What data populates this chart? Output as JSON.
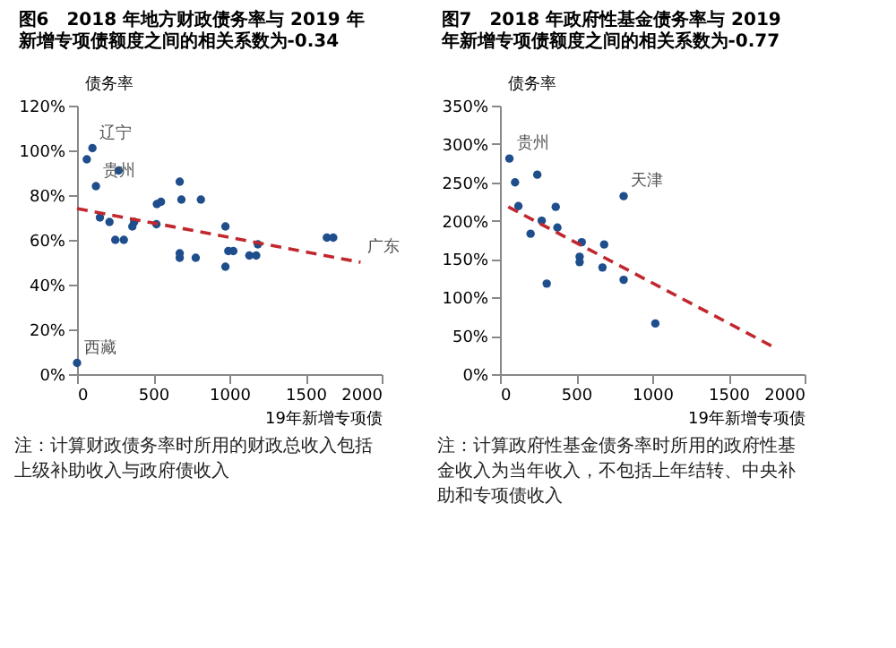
{
  "chart_data": [
    {
      "type": "scatter",
      "title": "图6　2018 年地方财政债务率与 2019 年新增专项债额度之间的相关系数为-0.34",
      "xlabel": "19年新增专项债",
      "ylabel": "债务率",
      "marker": "circle",
      "grid": false,
      "xlim": [
        0,
        2000
      ],
      "xticks": [
        0,
        500,
        1000,
        1500,
        2000
      ],
      "ylim": [
        0,
        120
      ],
      "yticks": [
        {
          "value": 0,
          "label": "0%"
        },
        {
          "value": 20,
          "label": "20%"
        },
        {
          "value": 40,
          "label": "40%"
        },
        {
          "value": 60,
          "label": "60%"
        },
        {
          "value": 80,
          "label": "80%"
        },
        {
          "value": 100,
          "label": "100%"
        },
        {
          "value": 120,
          "label": "120%"
        }
      ],
      "series": [
        {
          "color": "#1f4e8c",
          "x": [
            0,
            64,
            101,
            124,
            150,
            213,
            251,
            273,
            307,
            363,
            375,
            521,
            524,
            551,
            674,
            674,
            674,
            685,
            779,
            813,
            974,
            974,
            993,
            1026,
            1131,
            1176,
            1187,
            1640,
            1682
          ],
          "values": [
            5,
            96,
            101,
            84,
            70,
            68,
            60,
            91,
            60,
            66,
            68,
            67,
            76,
            77,
            86,
            52,
            54,
            78,
            52,
            78,
            66,
            48,
            55,
            55,
            53,
            53,
            58,
            61,
            61
          ]
        },
        {
          "type": "line",
          "marker": "none",
          "color": "#c0282d",
          "line_style": "dashed",
          "x": [
            0,
            1861
          ],
          "values": [
            74,
            50
          ]
        }
      ],
      "annotations": [
        {
          "text": "辽宁",
          "x": 101,
          "y": 101
        },
        {
          "text": "贵州",
          "x": 124,
          "y": 84
        },
        {
          "text": "广东",
          "x": 1861,
          "y": 50
        },
        {
          "text": "西藏",
          "x": 0,
          "y": 5
        },
        "注：计算财政债务率时所用的财政总收入包括上级补助收入与政府债收入"
      ]
    },
    {
      "type": "scatter",
      "title": "图7　2018 年政府性基金债务率与 2019 年新增专项债额度之间的相关系数为-0.77",
      "xlabel": "19年新增专项债",
      "ylabel": "债务率",
      "marker": "circle",
      "grid": false,
      "xlim": [
        0,
        2000
      ],
      "xticks": [
        0,
        500,
        1000,
        1500,
        2000
      ],
      "ylim": [
        0,
        350
      ],
      "yticks": [
        {
          "value": 0,
          "label": "0%"
        },
        {
          "value": 50,
          "label": "50%"
        },
        {
          "value": 100,
          "label": "100%"
        },
        {
          "value": 150,
          "label": "150%"
        },
        {
          "value": 200,
          "label": "200%"
        },
        {
          "value": 250,
          "label": "250%"
        },
        {
          "value": 300,
          "label": "300%"
        },
        {
          "value": 350,
          "label": "350%"
        }
      ],
      "series": [
        {
          "color": "#1f4e8c",
          "x": [
            62,
            99,
            121,
            201,
            245,
            274,
            307,
            366,
            377,
            523,
            523,
            537,
            673,
            684,
            812,
            812,
            1020
          ],
          "values": [
            281,
            250,
            219,
            183,
            260,
            200,
            118,
            218,
            191,
            153,
            146,
            172,
            139,
            169,
            232,
            123,
            66
          ]
        },
        {
          "type": "line",
          "marker": "none",
          "color": "#c0282d",
          "line_style": "dashed",
          "x": [
            55,
            1781
          ],
          "values": [
            218,
            37
          ]
        }
      ],
      "annotations": [
        {
          "text": "贵州",
          "x": 62,
          "y": 281
        },
        {
          "text": "天津",
          "x": 812,
          "y": 232
        },
        "注：计算政府性基金债务率时所用的政府性基金收入为当年收入，不包括上年结转、中央补助和专项债收入"
      ]
    }
  ]
}
